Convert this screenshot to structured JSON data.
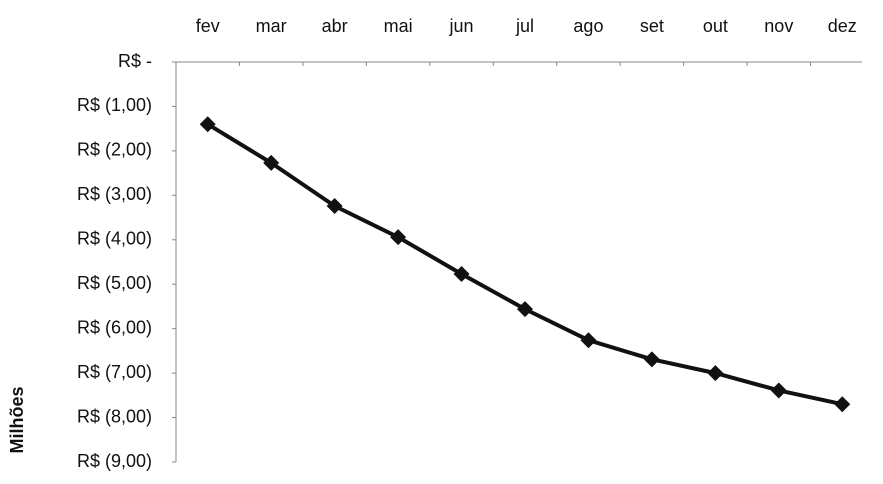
{
  "chart_data": {
    "type": "line",
    "y_axis_label": "Milhões",
    "categories": [
      "fev",
      "mar",
      "abr",
      "mai",
      "jun",
      "jul",
      "ago",
      "set",
      "out",
      "nov",
      "dez"
    ],
    "values": [
      -1.4,
      -2.27,
      -3.24,
      -3.94,
      -4.77,
      -5.56,
      -6.26,
      -6.69,
      -7.0,
      -7.39,
      -7.7
    ],
    "color": "#111111",
    "ylim": [
      -9,
      0
    ],
    "yticks": [
      {
        "value": 0,
        "label": "R$ -"
      },
      {
        "value": -1,
        "label": "R$ (1,00)"
      },
      {
        "value": -2,
        "label": "R$ (2,00)"
      },
      {
        "value": -3,
        "label": "R$ (3,00)"
      },
      {
        "value": -4,
        "label": "R$ (4,00)"
      },
      {
        "value": -5,
        "label": "R$ (5,00)"
      },
      {
        "value": -6,
        "label": "R$ (6,00)"
      },
      {
        "value": -7,
        "label": "R$ (7,00)"
      },
      {
        "value": -8,
        "label": "R$ (8,00)"
      },
      {
        "value": -9,
        "label": "R$ (9,00)"
      }
    ],
    "grid": false
  }
}
